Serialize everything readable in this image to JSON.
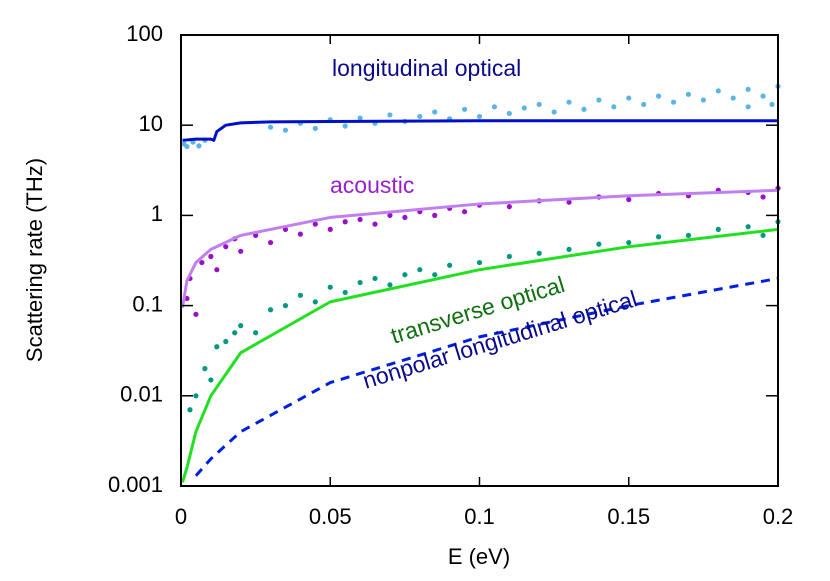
{
  "chart_data": {
    "type": "line",
    "xlabel": "E (eV)",
    "ylabel": "Scattering rate (THz)",
    "xlim": [
      0,
      0.2
    ],
    "ylim": [
      0.001,
      100
    ],
    "xticks": [
      0,
      0.05,
      0.1,
      0.15,
      0.2
    ],
    "yticks": [
      0.001,
      0.01,
      0.1,
      1,
      10,
      100
    ],
    "ylog": true,
    "annotations": [
      {
        "text": "longitudinal optical",
        "color": "#0a0a8c"
      },
      {
        "text": "acoustic",
        "color": "#9a1fd0"
      },
      {
        "text": "transverse optical",
        "color": "#107010"
      },
      {
        "text": "nonpolar longitudinal optical",
        "color": "#0a0a8c"
      }
    ],
    "series": [
      {
        "mode": "markers",
        "color": "#5ab4e6",
        "x": [
          0.001,
          0.002,
          0.004,
          0.006,
          0.008,
          0.03,
          0.035,
          0.04,
          0.045,
          0.05,
          0.055,
          0.06,
          0.065,
          0.07,
          0.075,
          0.08,
          0.085,
          0.09,
          0.095,
          0.1,
          0.105,
          0.11,
          0.115,
          0.12,
          0.125,
          0.13,
          0.135,
          0.14,
          0.145,
          0.15,
          0.155,
          0.16,
          0.165,
          0.17,
          0.175,
          0.18,
          0.185,
          0.19,
          0.195,
          0.2,
          0.198,
          0.19
        ],
        "values": [
          6.2,
          5.8,
          6.5,
          5.9,
          6.8,
          9.5,
          8.8,
          10.5,
          9.2,
          11.5,
          9.8,
          12,
          10.5,
          13,
          11,
          12.5,
          14,
          11.8,
          15,
          12.5,
          16,
          13.5,
          15.5,
          17,
          14,
          18,
          15,
          19,
          16,
          20,
          17,
          21,
          18,
          22,
          19,
          24,
          20,
          25,
          21,
          27,
          17,
          16
        ]
      },
      {
        "mode": "markers",
        "color": "#9a0fc8",
        "x": [
          0.002,
          0.003,
          0.005,
          0.007,
          0.01,
          0.012,
          0.015,
          0.018,
          0.02,
          0.025,
          0.03,
          0.035,
          0.04,
          0.045,
          0.05,
          0.055,
          0.06,
          0.065,
          0.07,
          0.075,
          0.08,
          0.085,
          0.09,
          0.095,
          0.1,
          0.11,
          0.12,
          0.13,
          0.14,
          0.15,
          0.16,
          0.17,
          0.18,
          0.19,
          0.2,
          0.195
        ],
        "values": [
          0.12,
          0.2,
          0.08,
          0.3,
          0.35,
          0.25,
          0.45,
          0.55,
          0.4,
          0.6,
          0.5,
          0.7,
          0.62,
          0.8,
          0.7,
          0.85,
          0.9,
          0.8,
          1.0,
          0.95,
          1.1,
          1.0,
          1.2,
          1.1,
          1.3,
          1.25,
          1.45,
          1.4,
          1.6,
          1.5,
          1.75,
          1.65,
          1.9,
          1.8,
          2.0,
          1.6
        ]
      },
      {
        "mode": "markers",
        "color": "#009880",
        "x": [
          0.003,
          0.005,
          0.008,
          0.01,
          0.012,
          0.015,
          0.018,
          0.02,
          0.025,
          0.03,
          0.035,
          0.04,
          0.045,
          0.05,
          0.055,
          0.06,
          0.065,
          0.07,
          0.075,
          0.08,
          0.085,
          0.09,
          0.1,
          0.11,
          0.12,
          0.13,
          0.14,
          0.15,
          0.16,
          0.17,
          0.18,
          0.19,
          0.2,
          0.195
        ],
        "values": [
          0.007,
          0.01,
          0.02,
          0.015,
          0.035,
          0.04,
          0.05,
          0.06,
          0.05,
          0.09,
          0.1,
          0.13,
          0.11,
          0.16,
          0.14,
          0.18,
          0.2,
          0.17,
          0.22,
          0.25,
          0.22,
          0.28,
          0.3,
          0.35,
          0.38,
          0.42,
          0.48,
          0.5,
          0.58,
          0.6,
          0.7,
          0.75,
          0.85,
          0.6
        ]
      },
      {
        "mode": "lines",
        "color": "#0010c8",
        "dash": false,
        "x": [
          0.0005,
          0.005,
          0.01,
          0.011,
          0.012,
          0.015,
          0.02,
          0.03,
          0.05,
          0.1,
          0.15,
          0.2
        ],
        "values": [
          6.8,
          7.0,
          7.0,
          6.8,
          8.5,
          10,
          10.6,
          10.9,
          11,
          11.2,
          11.2,
          11.2
        ]
      },
      {
        "mode": "lines",
        "color": "#c080f0",
        "dash": false,
        "x": [
          0.0005,
          0.002,
          0.005,
          0.01,
          0.02,
          0.05,
          0.1,
          0.15,
          0.2
        ],
        "values": [
          0.095,
          0.19,
          0.3,
          0.42,
          0.6,
          0.95,
          1.34,
          1.65,
          1.9
        ]
      },
      {
        "mode": "lines",
        "color": "#20e020",
        "dash": false,
        "x": [
          0.0005,
          0.002,
          0.005,
          0.01,
          0.02,
          0.05,
          0.1,
          0.15,
          0.2
        ],
        "values": [
          0.0011,
          0.0016,
          0.004,
          0.01,
          0.03,
          0.11,
          0.25,
          0.45,
          0.7
        ]
      },
      {
        "mode": "lines",
        "color": "#0020e0",
        "dash": true,
        "x": [
          0.005,
          0.01,
          0.02,
          0.05,
          0.1,
          0.15,
          0.2
        ],
        "values": [
          0.0013,
          0.002,
          0.004,
          0.014,
          0.045,
          0.1,
          0.2
        ]
      }
    ]
  }
}
